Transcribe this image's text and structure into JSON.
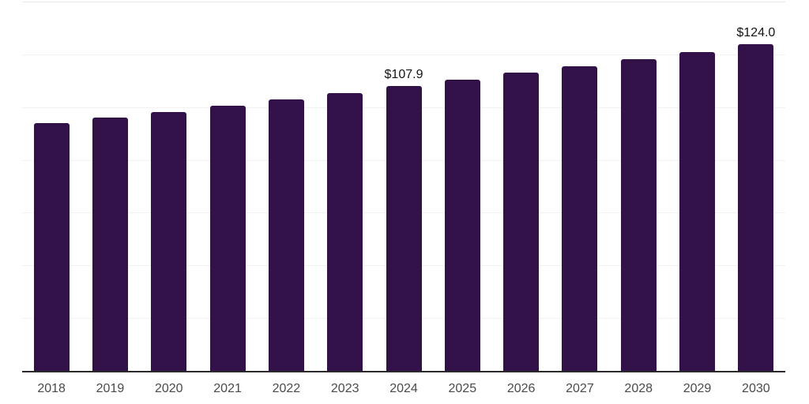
{
  "chart_data": {
    "type": "bar",
    "title": "",
    "xlabel": "",
    "ylabel": "",
    "categories": [
      "2018",
      "2019",
      "2020",
      "2021",
      "2022",
      "2023",
      "2024",
      "2025",
      "2026",
      "2027",
      "2028",
      "2029",
      "2030"
    ],
    "values": [
      93.9,
      95.9,
      98.2,
      100.5,
      102.9,
      105.4,
      107.9,
      110.5,
      113.0,
      115.5,
      118.2,
      121.0,
      124.0
    ],
    "data_labels": {
      "2024": "$107.9",
      "2030": "$124.0"
    },
    "ylim": [
      0,
      140
    ],
    "grid": true,
    "grid_step": 20,
    "legend": false,
    "legend_position": "none",
    "y_axis_labels_visible": false,
    "colors": {
      "bar": "#321149",
      "axis": "#2b2b2b",
      "gridline": "#f2f2f2",
      "top_gridline": "#e9e9e9",
      "tick_label": "#4a4a4a",
      "value_label": "#141414",
      "background": "#ffffff"
    }
  }
}
